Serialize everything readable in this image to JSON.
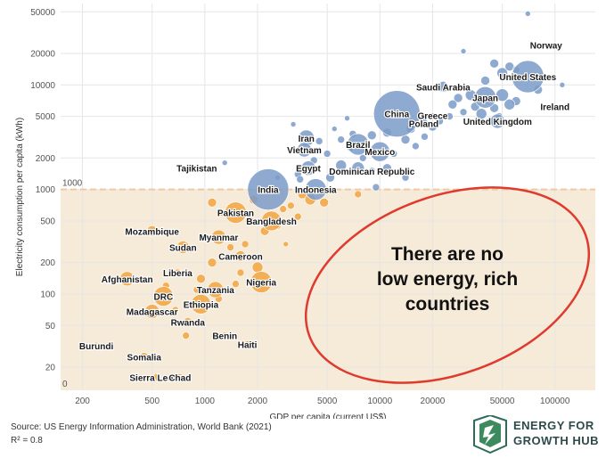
{
  "chart_data": {
    "type": "scatter",
    "xlabel": "GDP per capita (current US$)",
    "ylabel": "Electricity consumption per capita (kWh)",
    "xscale": "log",
    "yscale": "log",
    "xlim": [
      150,
      170000
    ],
    "ylim": [
      12,
      60000
    ],
    "x_ticks": [
      200,
      500,
      1000,
      2000,
      5000,
      10000,
      20000,
      50000,
      100000
    ],
    "y_ticks": [
      20,
      50,
      100,
      200,
      500,
      1000,
      2000,
      5000,
      10000,
      20000,
      50000
    ],
    "grid": true,
    "threshold": {
      "value": 1000,
      "label": "1000",
      "zero_label": "0"
    },
    "colors": {
      "low": "#f2a540",
      "high": "#7b9bc8",
      "band": "#f6ead8",
      "threshold": "#f0c9a0",
      "ellipse": "#e03a2f"
    },
    "annotation": "There are no low energy, rich countries",
    "labeled_points": [
      {
        "name": "Norway",
        "x": 89000,
        "y": 24000,
        "size": 3
      },
      {
        "name": "United States",
        "x": 70000,
        "y": 12000,
        "size": 18
      },
      {
        "name": "Saudi Arabia",
        "x": 23000,
        "y": 9600,
        "size": 6
      },
      {
        "name": "Japan",
        "x": 40000,
        "y": 7600,
        "size": 12
      },
      {
        "name": "Ireland",
        "x": 100000,
        "y": 6200,
        "size": 2
      },
      {
        "name": "China",
        "x": 12500,
        "y": 5300,
        "size": 26
      },
      {
        "name": "Greece",
        "x": 20000,
        "y": 5100,
        "size": 3
      },
      {
        "name": "Poland",
        "x": 17800,
        "y": 4300,
        "size": 5
      },
      {
        "name": "United Kingdom",
        "x": 47000,
        "y": 4500,
        "size": 8
      },
      {
        "name": "Iran",
        "x": 3800,
        "y": 3100,
        "size": 9
      },
      {
        "name": "Brazil",
        "x": 7500,
        "y": 2700,
        "size": 12
      },
      {
        "name": "Mexico",
        "x": 10000,
        "y": 2300,
        "size": 11
      },
      {
        "name": "Vietnam",
        "x": 3700,
        "y": 2400,
        "size": 8
      },
      {
        "name": "Tajikistan",
        "x": 900,
        "y": 1600,
        "size": 3
      },
      {
        "name": "Egypt",
        "x": 3900,
        "y": 1600,
        "size": 8
      },
      {
        "name": "Dominican Republic",
        "x": 9000,
        "y": 1500,
        "size": 4
      },
      {
        "name": "India",
        "x": 2300,
        "y": 1000,
        "size": 23
      },
      {
        "name": "Indonesia",
        "x": 4300,
        "y": 1000,
        "size": 12
      },
      {
        "name": "Pakistan",
        "x": 1500,
        "y": 600,
        "size": 12
      },
      {
        "name": "Bangladesh",
        "x": 2400,
        "y": 500,
        "size": 11
      },
      {
        "name": "Mozambique",
        "x": 500,
        "y": 400,
        "size": 6
      },
      {
        "name": "Myanmar",
        "x": 1200,
        "y": 350,
        "size": 8
      },
      {
        "name": "Sudan",
        "x": 750,
        "y": 280,
        "size": 7
      },
      {
        "name": "Cameroon",
        "x": 1600,
        "y": 230,
        "size": 6
      },
      {
        "name": "Liberia",
        "x": 700,
        "y": 160,
        "size": 4
      },
      {
        "name": "Afghanistan",
        "x": 360,
        "y": 140,
        "size": 8
      },
      {
        "name": "Nigeria",
        "x": 2100,
        "y": 130,
        "size": 12
      },
      {
        "name": "Tanzania",
        "x": 1150,
        "y": 110,
        "size": 9
      },
      {
        "name": "DRC",
        "x": 580,
        "y": 95,
        "size": 11
      },
      {
        "name": "Ethiopia",
        "x": 950,
        "y": 80,
        "size": 11
      },
      {
        "name": "Madagascar",
        "x": 500,
        "y": 68,
        "size": 8
      },
      {
        "name": "Rwanda",
        "x": 800,
        "y": 54,
        "size": 5
      },
      {
        "name": "Benin",
        "x": 1300,
        "y": 40,
        "size": 4
      },
      {
        "name": "Haiti",
        "x": 1750,
        "y": 33,
        "size": 4
      },
      {
        "name": "Burundi",
        "x": 240,
        "y": 32,
        "size": 4
      },
      {
        "name": "Somalia",
        "x": 450,
        "y": 25,
        "size": 5
      },
      {
        "name": "Sierra Leone",
        "x": 530,
        "y": 16,
        "size": 4
      },
      {
        "name": "Chad",
        "x": 720,
        "y": 16,
        "size": 4
      }
    ],
    "other_points": [
      {
        "x": 70000,
        "y": 48000,
        "size": 3
      },
      {
        "x": 30000,
        "y": 21000,
        "size": 3
      },
      {
        "x": 45000,
        "y": 16000,
        "size": 5
      },
      {
        "x": 55000,
        "y": 15000,
        "size": 5
      },
      {
        "x": 60000,
        "y": 14000,
        "size": 4
      },
      {
        "x": 50000,
        "y": 13000,
        "size": 6
      },
      {
        "x": 40000,
        "y": 11000,
        "size": 5
      },
      {
        "x": 80000,
        "y": 9000,
        "size": 5
      },
      {
        "x": 110000,
        "y": 10000,
        "size": 3
      },
      {
        "x": 33000,
        "y": 8000,
        "size": 6
      },
      {
        "x": 28000,
        "y": 7500,
        "size": 5
      },
      {
        "x": 50000,
        "y": 8000,
        "size": 7
      },
      {
        "x": 60000,
        "y": 7000,
        "size": 5
      },
      {
        "x": 55000,
        "y": 6500,
        "size": 6
      },
      {
        "x": 45000,
        "y": 6000,
        "size": 5
      },
      {
        "x": 35000,
        "y": 6200,
        "size": 5
      },
      {
        "x": 30000,
        "y": 5500,
        "size": 4
      },
      {
        "x": 25000,
        "y": 5000,
        "size": 4
      },
      {
        "x": 38000,
        "y": 5300,
        "size": 6
      },
      {
        "x": 48000,
        "y": 5000,
        "size": 4
      },
      {
        "x": 20000,
        "y": 4000,
        "size": 5
      },
      {
        "x": 22000,
        "y": 4500,
        "size": 4
      },
      {
        "x": 15000,
        "y": 3800,
        "size": 5
      },
      {
        "x": 14000,
        "y": 3000,
        "size": 5
      },
      {
        "x": 11000,
        "y": 3500,
        "size": 5
      },
      {
        "x": 9000,
        "y": 3300,
        "size": 5
      },
      {
        "x": 7000,
        "y": 3400,
        "size": 4
      },
      {
        "x": 6000,
        "y": 3000,
        "size": 4
      },
      {
        "x": 5500,
        "y": 3800,
        "size": 3
      },
      {
        "x": 4500,
        "y": 2900,
        "size": 4
      },
      {
        "x": 3200,
        "y": 4200,
        "size": 3
      },
      {
        "x": 6500,
        "y": 4800,
        "size": 3
      },
      {
        "x": 16000,
        "y": 2600,
        "size": 4
      },
      {
        "x": 12000,
        "y": 2200,
        "size": 4
      },
      {
        "x": 8000,
        "y": 2000,
        "size": 4
      },
      {
        "x": 5000,
        "y": 2200,
        "size": 4
      },
      {
        "x": 4200,
        "y": 1900,
        "size": 4
      },
      {
        "x": 6000,
        "y": 1700,
        "size": 6
      },
      {
        "x": 7500,
        "y": 1600,
        "size": 7
      },
      {
        "x": 11000,
        "y": 1600,
        "size": 5
      },
      {
        "x": 3400,
        "y": 1400,
        "size": 4
      },
      {
        "x": 5200,
        "y": 1300,
        "size": 5
      },
      {
        "x": 14000,
        "y": 1300,
        "size": 4
      },
      {
        "x": 3500,
        "y": 1250,
        "size": 4
      },
      {
        "x": 9500,
        "y": 1050,
        "size": 4
      },
      {
        "x": 1300,
        "y": 1800,
        "size": 3
      },
      {
        "x": 2600,
        "y": 1300,
        "size": 3
      },
      {
        "x": 6800,
        "y": 2500,
        "size": 4
      },
      {
        "x": 18000,
        "y": 3200,
        "size": 4
      },
      {
        "x": 26000,
        "y": 6500,
        "size": 5
      }
    ],
    "other_low_points": [
      {
        "x": 3600,
        "y": 900,
        "size": 5
      },
      {
        "x": 4000,
        "y": 800,
        "size": 6
      },
      {
        "x": 3100,
        "y": 700,
        "size": 4
      },
      {
        "x": 4800,
        "y": 750,
        "size": 5
      },
      {
        "x": 1100,
        "y": 750,
        "size": 5
      },
      {
        "x": 1900,
        "y": 800,
        "size": 5
      },
      {
        "x": 2800,
        "y": 650,
        "size": 4
      },
      {
        "x": 3400,
        "y": 550,
        "size": 4
      },
      {
        "x": 2200,
        "y": 400,
        "size": 5
      },
      {
        "x": 1700,
        "y": 300,
        "size": 4
      },
      {
        "x": 1400,
        "y": 280,
        "size": 4
      },
      {
        "x": 1100,
        "y": 200,
        "size": 5
      },
      {
        "x": 950,
        "y": 140,
        "size": 5
      },
      {
        "x": 1500,
        "y": 125,
        "size": 4
      },
      {
        "x": 2000,
        "y": 180,
        "size": 6
      },
      {
        "x": 1600,
        "y": 160,
        "size": 4
      },
      {
        "x": 2900,
        "y": 300,
        "size": 3
      },
      {
        "x": 1200,
        "y": 90,
        "size": 4
      },
      {
        "x": 680,
        "y": 70,
        "size": 4
      },
      {
        "x": 780,
        "y": 40,
        "size": 4
      },
      {
        "x": 900,
        "y": 110,
        "size": 4
      },
      {
        "x": 600,
        "y": 120,
        "size": 4
      },
      {
        "x": 1250,
        "y": 600,
        "size": 4
      },
      {
        "x": 7500,
        "y": 900,
        "size": 4
      },
      {
        "x": 1800,
        "y": 500,
        "size": 5
      },
      {
        "x": 2600,
        "y": 450,
        "size": 4
      }
    ]
  },
  "footer": {
    "source": "Source: US Energy Information Administration, World Bank (2021)",
    "r2": "R² = 0.8"
  },
  "logo": {
    "line1": "ENERGY FOR",
    "line2": "GROWTH HUB"
  }
}
